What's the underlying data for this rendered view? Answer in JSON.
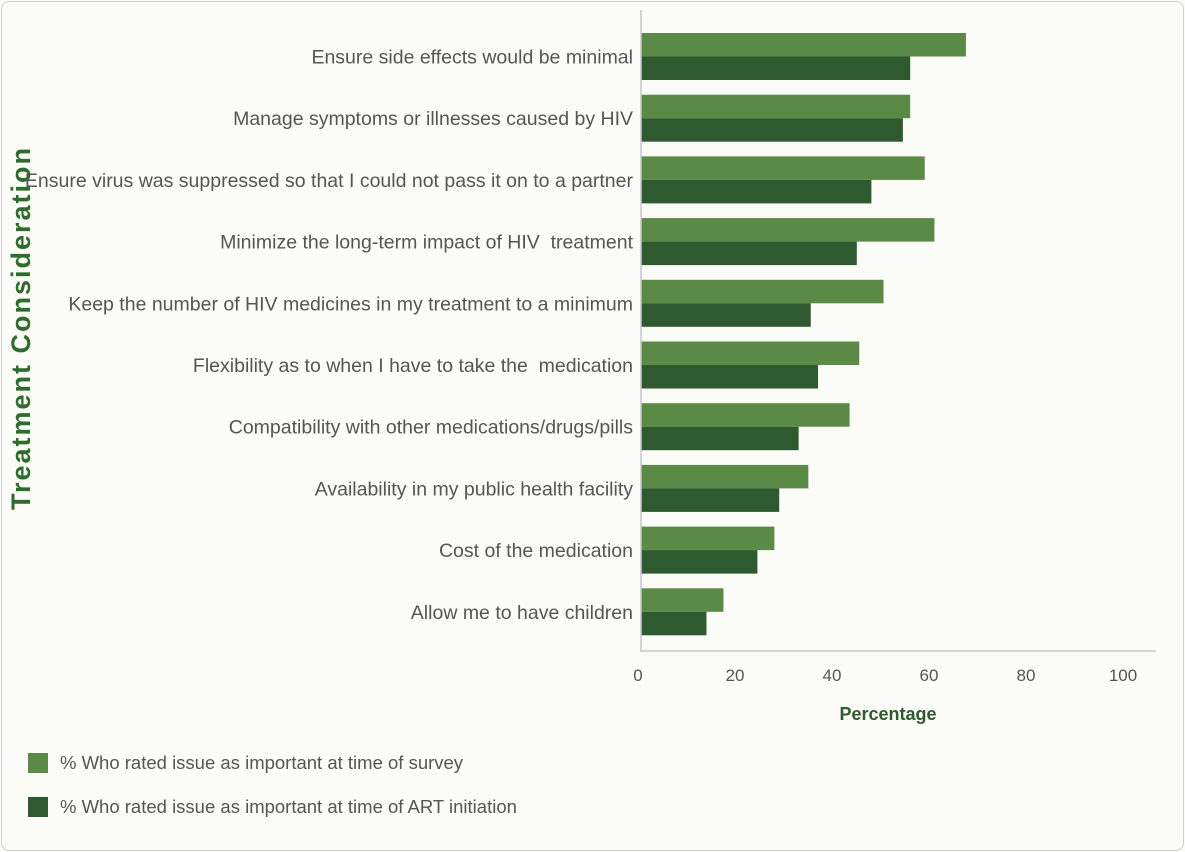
{
  "chart_data": {
    "type": "bar",
    "orientation": "horizontal",
    "categories": [
      "Ensure side effects would be minimal",
      "Manage symptoms or illnesses caused by HIV",
      "Ensure virus was suppressed so that I could not pass it on to a partner",
      "Minimize the long-term impact of HIV  treatment",
      "Keep the number of HIV medicines in my treatment to a minimum",
      "Flexibility as to when I have to take the  medication",
      "Compatibility with other medications/drugs/pills",
      "Availability in my public health facility",
      "Cost of the medication",
      "Allow me to have children"
    ],
    "series": [
      {
        "name": "% Who rated issue as important at time of survey",
        "color": "#5a8a45",
        "values": [
          67,
          55.5,
          58.5,
          60.5,
          50,
          45,
          43,
          34.5,
          27.5,
          17
        ]
      },
      {
        "name": "% Who rated issue as important at time of ART initiation",
        "color": "#2f5a30",
        "values": [
          55.5,
          54,
          47.5,
          44.5,
          35,
          36.5,
          32.5,
          28.5,
          24,
          13.5
        ]
      }
    ],
    "xlabel": "Percentage",
    "ylabel": "Treatment  Consideration",
    "xlim": [
      0,
      100
    ],
    "xticks": [
      "0",
      "20",
      "40",
      "60",
      "80",
      "100"
    ],
    "grid": false,
    "legend_position": "bottom-left"
  }
}
